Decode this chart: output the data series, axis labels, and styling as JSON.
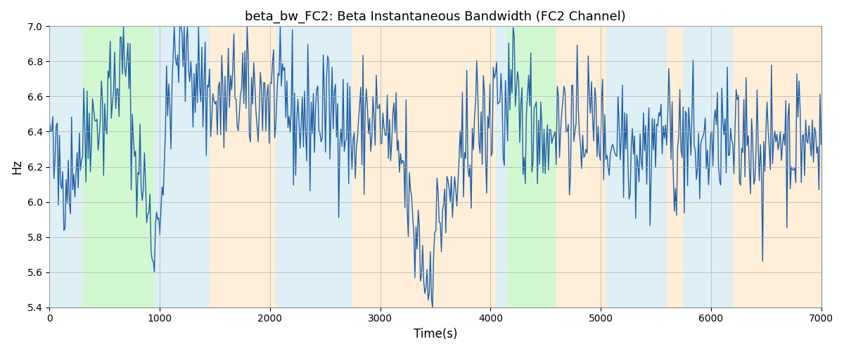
{
  "title": "beta_bw_FC2: Beta Instantaneous Bandwidth (FC2 Channel)",
  "xlabel": "Time(s)",
  "ylabel": "Hz",
  "xlim": [
    0,
    7000
  ],
  "ylim": [
    5.4,
    7.0
  ],
  "line_color": "#1f5fa6",
  "line_width": 1.0,
  "background_color": "#ffffff",
  "grid_color": "#b0b0b0",
  "regions": [
    {
      "xmin": 0,
      "xmax": 300,
      "color": "#add8e6",
      "alpha": 0.4
    },
    {
      "xmin": 300,
      "xmax": 950,
      "color": "#90ee90",
      "alpha": 0.4
    },
    {
      "xmin": 950,
      "xmax": 1450,
      "color": "#add8e6",
      "alpha": 0.4
    },
    {
      "xmin": 1450,
      "xmax": 2050,
      "color": "#ffd59e",
      "alpha": 0.4
    },
    {
      "xmin": 2050,
      "xmax": 2750,
      "color": "#add8e6",
      "alpha": 0.4
    },
    {
      "xmin": 2750,
      "xmax": 3100,
      "color": "#ffd59e",
      "alpha": 0.4
    },
    {
      "xmin": 3100,
      "xmax": 4050,
      "color": "#ffd59e",
      "alpha": 0.4
    },
    {
      "xmin": 4050,
      "xmax": 4150,
      "color": "#add8e6",
      "alpha": 0.4
    },
    {
      "xmin": 4150,
      "xmax": 4600,
      "color": "#90ee90",
      "alpha": 0.4
    },
    {
      "xmin": 4600,
      "xmax": 4800,
      "color": "#ffd59e",
      "alpha": 0.4
    },
    {
      "xmin": 4800,
      "xmax": 5050,
      "color": "#ffd59e",
      "alpha": 0.4
    },
    {
      "xmin": 5050,
      "xmax": 5600,
      "color": "#add8e6",
      "alpha": 0.4
    },
    {
      "xmin": 5600,
      "xmax": 5750,
      "color": "#ffd59e",
      "alpha": 0.4
    },
    {
      "xmin": 5750,
      "xmax": 6200,
      "color": "#add8e6",
      "alpha": 0.4
    },
    {
      "xmin": 6200,
      "xmax": 6450,
      "color": "#ffd59e",
      "alpha": 0.4
    },
    {
      "xmin": 6450,
      "xmax": 7000,
      "color": "#ffd59e",
      "alpha": 0.4
    }
  ],
  "seed": 42,
  "n_points": 700,
  "yticks": [
    5.4,
    5.6,
    5.8,
    6.0,
    6.2,
    6.4,
    6.6,
    6.8,
    7.0
  ],
  "xticks": [
    0,
    1000,
    2000,
    3000,
    4000,
    5000,
    6000,
    7000
  ]
}
